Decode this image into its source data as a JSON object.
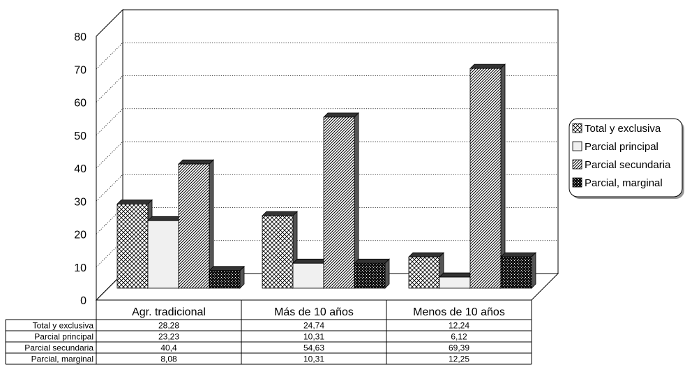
{
  "chart_data": {
    "type": "bar",
    "categories": [
      "Agr. tradicional",
      "Más de 10 años",
      "Menos de 10 años"
    ],
    "series": [
      {
        "name": "Total y exclusiva",
        "values": [
          28.28,
          24.74,
          12.24
        ],
        "labels": [
          "28,28",
          "24,74",
          "12,24"
        ],
        "pattern": "crosshatch"
      },
      {
        "name": "Parcial principal",
        "values": [
          23.23,
          10.31,
          6.12
        ],
        "labels": [
          "23,23",
          "10,31",
          "6,12"
        ],
        "pattern": "plain"
      },
      {
        "name": "Parcial secundaria",
        "values": [
          40.4,
          54.63,
          69.39
        ],
        "labels": [
          "40,4",
          "54,63",
          "69,39"
        ],
        "pattern": "diagonal"
      },
      {
        "name": "Parcial, marginal",
        "values": [
          8.08,
          10.31,
          12.25
        ],
        "labels": [
          "8,08",
          "10,31",
          "12,25"
        ],
        "pattern": "dark"
      }
    ],
    "yticks": [
      "0",
      "10",
      "20",
      "30",
      "40",
      "50",
      "60",
      "70",
      "80"
    ],
    "ylim": [
      0,
      80
    ],
    "grid": true,
    "legend": "right",
    "style": "3d-clustered-bar-with-data-table",
    "colors": {
      "plain_face": "#f0f0f0",
      "dark_face": "#1a1a1a",
      "side": "#555555",
      "top": "#333333"
    }
  }
}
